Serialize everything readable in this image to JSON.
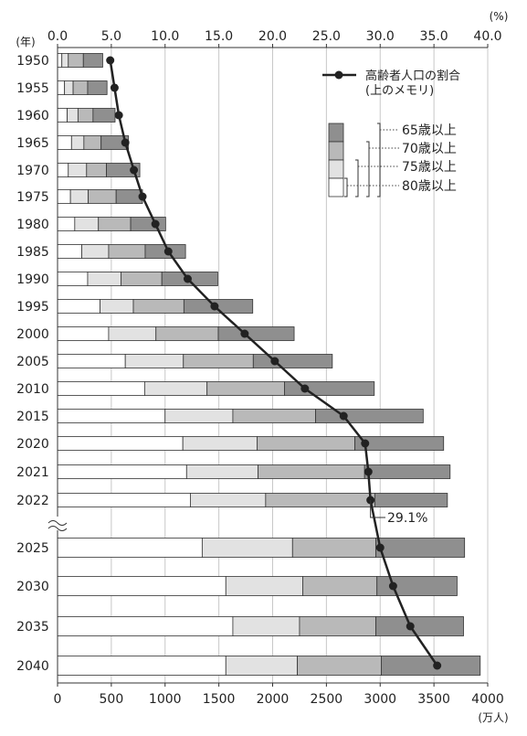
{
  "chart_data": {
    "type": "bar",
    "subtype": "stacked-horizontal-with-line",
    "y_unit_label": "(年)",
    "bottom_axis": {
      "unit_label": "(万人)",
      "min": 0,
      "max": 4000,
      "ticks": [
        0,
        500,
        1000,
        1500,
        2000,
        2500,
        3000,
        3500,
        4000
      ]
    },
    "top_axis": {
      "unit_label": "(%)",
      "min": 0,
      "max": 40,
      "ticks": [
        "0.0",
        "5.0",
        "10.0",
        "15.0",
        "20.0",
        "25.0",
        "30.0",
        "35.0",
        "40.0"
      ]
    },
    "grid": "vertical",
    "categories": [
      "1950",
      "1955",
      "1960",
      "1965",
      "1970",
      "1975",
      "1980",
      "1985",
      "1990",
      "1995",
      "2000",
      "2005",
      "2010",
      "2015",
      "2020",
      "2021",
      "2022",
      "2025",
      "2030",
      "2035",
      "2040"
    ],
    "series": [
      {
        "name": "80歳以上",
        "color": "#ffffff",
        "values": [
          40,
          65,
          90,
          130,
          100,
          120,
          160,
          225,
          280,
          395,
          475,
          630,
          810,
          1000,
          1165,
          1200,
          1235,
          1345,
          1565,
          1630,
          1565
        ]
      },
      {
        "name": "75歳以上",
        "color": "#e2e2e2",
        "values": [
          60,
          80,
          100,
          115,
          170,
          165,
          220,
          250,
          310,
          310,
          440,
          540,
          580,
          630,
          690,
          665,
          700,
          840,
          715,
          620,
          665
        ]
      },
      {
        "name": "70歳以上",
        "color": "#b9b9b9",
        "values": [
          140,
          135,
          140,
          160,
          185,
          260,
          300,
          340,
          380,
          470,
          580,
          650,
          720,
          770,
          910,
          990,
          1015,
          775,
          690,
          710,
          780
        ]
      },
      {
        "name": "65歳以上",
        "color": "#8f8f8f",
        "values": [
          180,
          180,
          205,
          255,
          310,
          245,
          325,
          375,
          520,
          640,
          705,
          735,
          835,
          1000,
          825,
          795,
          675,
          825,
          745,
          815,
          920
        ]
      }
    ],
    "line": {
      "name": "高齢者人口の割合(上のメモリ)",
      "unit": "%",
      "values": [
        4.9,
        5.3,
        5.7,
        6.3,
        7.1,
        7.9,
        9.1,
        10.3,
        12.1,
        14.6,
        17.4,
        20.2,
        23.0,
        26.6,
        28.6,
        28.9,
        29.1,
        30.0,
        31.2,
        32.8,
        35.3
      ]
    },
    "annotation": "29.1%",
    "legend": {
      "line_label": "高齢者人口の割合",
      "line_sub_label": "(上のメモリ)",
      "bracket_labels": [
        "65歳以上",
        "70歳以上",
        "75歳以上",
        "80歳以上"
      ]
    }
  }
}
